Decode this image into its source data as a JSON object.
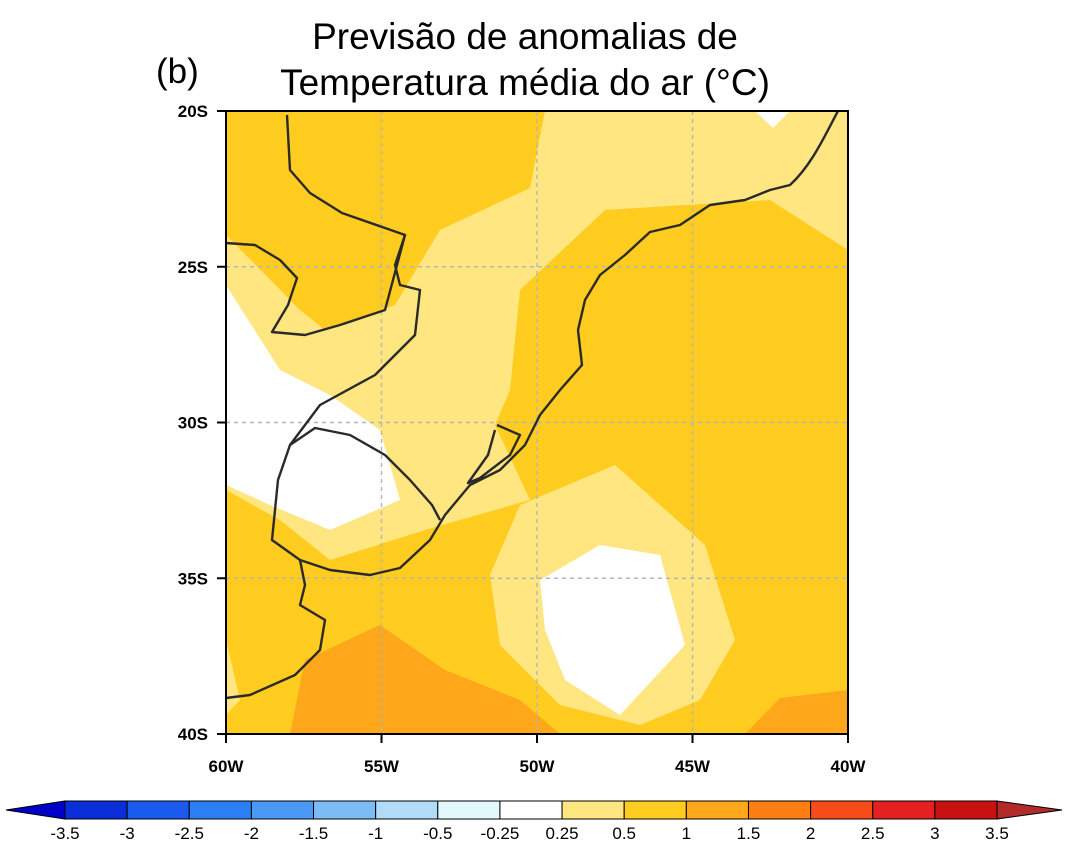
{
  "panel_label": "(b)",
  "title": {
    "line1": "Previsão de anomalias de",
    "line2": "Temperatura média do ar (°C)"
  },
  "map": {
    "lat_ticks": [
      "20S",
      "25S",
      "30S",
      "35S",
      "40S"
    ],
    "lon_ticks": [
      "60W",
      "55W",
      "50W",
      "45W",
      "40W"
    ],
    "lat_range": [
      -40,
      -20
    ],
    "lon_range": [
      -60,
      -40
    ],
    "gridlines": true
  },
  "colorbar": {
    "labels": [
      "-3.5",
      "-3",
      "-2.5",
      "-2",
      "-1.5",
      "-1",
      "-0.5",
      "-0.25",
      "0.25",
      "0.5",
      "1",
      "1.5",
      "2",
      "2.5",
      "3",
      "3.5"
    ],
    "colors": [
      "#0000c8",
      "#0a2fd8",
      "#1a5aef",
      "#2b7ff5",
      "#4a9af5",
      "#7cbcf5",
      "#b0dcf8",
      "#e2f8fb",
      "#ffffff",
      "#ffe680",
      "#ffcc1f",
      "#fea71a",
      "#fd7e12",
      "#f74c18",
      "#e42020",
      "#c81212",
      "#b32a2a"
    ]
  },
  "field_colors": {
    "band_0_25_0_5": "#ffe680",
    "band_0_5_1": "#ffcc1f",
    "band_1_1_5": "#fea71a",
    "below_0_25": "#ffffff"
  }
}
